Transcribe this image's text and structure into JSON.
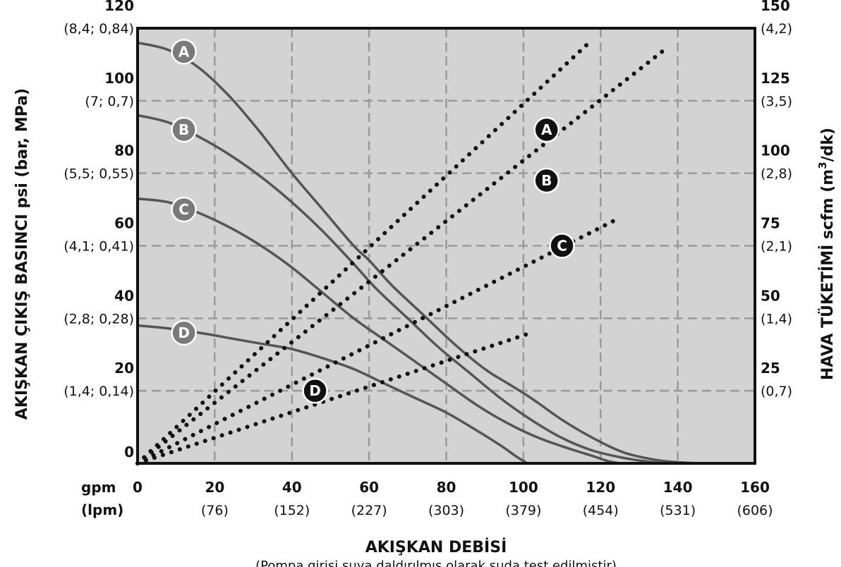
{
  "chart_data": {
    "type": "line",
    "xlabel": "AKIŞKAN DEBİSİ",
    "note": "(Pompa girişi suya daldırılmış olarak suda test edilmiştir)",
    "x_unit_top": "gpm",
    "x_unit_bottom": "(lpm)",
    "xlim": [
      0,
      160
    ],
    "x_ticks": [
      {
        "value": 0,
        "label": "0",
        "sub": ""
      },
      {
        "value": 20,
        "label": "20",
        "sub": "(76)"
      },
      {
        "value": 40,
        "label": "40",
        "sub": "(152)"
      },
      {
        "value": 60,
        "label": "60",
        "sub": "(227)"
      },
      {
        "value": 80,
        "label": "80",
        "sub": "(303)"
      },
      {
        "value": 100,
        "label": "100",
        "sub": "(379)"
      },
      {
        "value": 120,
        "label": "120",
        "sub": "(454)"
      },
      {
        "value": 140,
        "label": "140",
        "sub": "(531)"
      },
      {
        "value": 160,
        "label": "160",
        "sub": "(606)"
      }
    ],
    "ylabel_left": "AKIŞKAN ÇIKIŞ BASINCI psi (bar, MPa)",
    "ylim_left": [
      0,
      120
    ],
    "y_ticks_left": [
      {
        "value": 0,
        "label": "0",
        "sub": ""
      },
      {
        "value": 20,
        "label": "20",
        "sub": "(1,4; 0,14)"
      },
      {
        "value": 40,
        "label": "40",
        "sub": "(2,8; 0,28)"
      },
      {
        "value": 60,
        "label": "60",
        "sub": "(4,1; 0,41)"
      },
      {
        "value": 80,
        "label": "80",
        "sub": "(5,5; 0,55)"
      },
      {
        "value": 100,
        "label": "100",
        "sub": "(7; 0,7)"
      },
      {
        "value": 120,
        "label": "120",
        "sub": "(8,4; 0,84)"
      }
    ],
    "ylabel_right": "HAVA TÜKETİMİ scfm (m³/dk)",
    "ylabel_right_parts": {
      "main": "HAVA TÜKETİMİ scfm (m",
      "sup": "3",
      "end": "/dk)"
    },
    "ylim_right": [
      0,
      150
    ],
    "y_ticks_right": [
      {
        "value": 25,
        "label": "25",
        "sub": "(0,7)"
      },
      {
        "value": 50,
        "label": "50",
        "sub": "(1,4)"
      },
      {
        "value": 75,
        "label": "75",
        "sub": "(2,1)"
      },
      {
        "value": 100,
        "label": "100",
        "sub": "(2,8)"
      },
      {
        "value": 125,
        "label": "125",
        "sub": "(3,5)"
      },
      {
        "value": 150,
        "label": "150",
        "sub": "(4,2)"
      }
    ],
    "grid": true,
    "pressure_series": [
      {
        "label": "A",
        "marker": [
          12,
          113.5
        ],
        "points": [
          [
            0,
            116
          ],
          [
            8,
            114
          ],
          [
            16,
            109
          ],
          [
            24,
            101
          ],
          [
            32,
            91
          ],
          [
            40,
            80
          ],
          [
            48,
            70
          ],
          [
            56,
            60
          ],
          [
            60,
            56
          ],
          [
            66,
            49
          ],
          [
            74,
            41
          ],
          [
            82,
            33
          ],
          [
            90,
            26
          ],
          [
            96,
            22
          ],
          [
            102,
            18
          ],
          [
            110,
            12
          ],
          [
            118,
            7
          ],
          [
            126,
            3
          ],
          [
            134,
            1
          ],
          [
            140,
            0.3
          ],
          [
            146,
            0
          ]
        ]
      },
      {
        "label": "B",
        "marker": [
          12,
          92
        ],
        "points": [
          [
            0,
            96
          ],
          [
            8,
            94
          ],
          [
            16,
            90
          ],
          [
            24,
            85
          ],
          [
            32,
            79
          ],
          [
            40,
            72
          ],
          [
            48,
            64
          ],
          [
            56,
            55
          ],
          [
            62,
            48
          ],
          [
            70,
            40
          ],
          [
            78,
            32
          ],
          [
            86,
            25
          ],
          [
            94,
            18
          ],
          [
            102,
            12
          ],
          [
            110,
            7
          ],
          [
            118,
            3.5
          ],
          [
            126,
            1.5
          ],
          [
            132,
            0.5
          ],
          [
            136,
            0
          ]
        ]
      },
      {
        "label": "C",
        "marker": [
          12,
          70
        ],
        "points": [
          [
            0,
            73
          ],
          [
            8,
            72
          ],
          [
            16,
            69
          ],
          [
            24,
            65
          ],
          [
            32,
            60
          ],
          [
            40,
            54
          ],
          [
            48,
            47
          ],
          [
            56,
            40
          ],
          [
            64,
            34
          ],
          [
            72,
            28
          ],
          [
            80,
            22
          ],
          [
            88,
            16
          ],
          [
            96,
            11
          ],
          [
            104,
            7
          ],
          [
            112,
            4
          ],
          [
            118,
            2
          ],
          [
            122,
            0.6
          ],
          [
            125,
            0
          ]
        ]
      },
      {
        "label": "D",
        "marker": [
          12,
          36
        ],
        "points": [
          [
            0,
            38
          ],
          [
            8,
            37.2
          ],
          [
            16,
            36
          ],
          [
            24,
            34.5
          ],
          [
            32,
            33
          ],
          [
            40,
            31.5
          ],
          [
            48,
            29
          ],
          [
            56,
            26
          ],
          [
            64,
            22
          ],
          [
            72,
            18
          ],
          [
            80,
            14
          ],
          [
            88,
            9
          ],
          [
            94,
            5
          ],
          [
            98,
            2
          ],
          [
            101,
            0
          ]
        ]
      }
    ],
    "air_series": [
      {
        "label": "A",
        "marker": [
          106,
          115
        ],
        "points": [
          [
            0,
            0
          ],
          [
            117,
            145
          ]
        ]
      },
      {
        "label": "B",
        "marker": [
          106,
          97.5
        ],
        "points": [
          [
            0,
            0
          ],
          [
            136,
            142
          ]
        ]
      },
      {
        "label": "C",
        "marker": [
          110,
          75
        ],
        "points": [
          [
            0,
            0
          ],
          [
            124,
            84
          ]
        ]
      },
      {
        "label": "D",
        "marker": [
          46,
          25
        ],
        "points": [
          [
            0,
            0
          ],
          [
            102,
            45
          ]
        ]
      }
    ],
    "colors": {
      "plot_background": "#d3d3d3",
      "pressure_line": "#555555",
      "air_dots": "#111111",
      "pressure_marker": "#7a7a7a",
      "air_marker": "#111111",
      "grid": "#9a9a9a"
    }
  }
}
